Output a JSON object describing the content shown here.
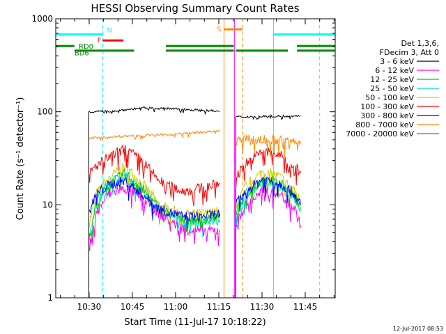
{
  "chart_data": {
    "type": "line",
    "title": "HESSI Observing Summary Count Rates",
    "xlabel": "Start Time (11-Jul-17 10:18:22)",
    "ylabel": "Count Rate (s⁻¹ detector⁻¹)",
    "x_unit": "minutes after 10:18:22 UT",
    "xlim": [
      0,
      97
    ],
    "ylim": [
      1,
      1000
    ],
    "y_scale": "log",
    "grid": false,
    "legend_position": "right",
    "x_ticks": [
      {
        "x": 11.6,
        "label": "10:30"
      },
      {
        "x": 26.6,
        "label": "10:45"
      },
      {
        "x": 41.6,
        "label": "11:00"
      },
      {
        "x": 56.6,
        "label": "11:15"
      },
      {
        "x": 71.6,
        "label": "11:30"
      },
      {
        "x": 86.6,
        "label": "11:45"
      }
    ],
    "y_ticks": [
      {
        "y": 1,
        "label": "1"
      },
      {
        "y": 10,
        "label": "10"
      },
      {
        "y": 100,
        "label": "100"
      },
      {
        "y": 1000,
        "label": "1000"
      }
    ],
    "legend_header": [
      "Det 1,3,6,",
      "FDecim 3, Att 0"
    ],
    "series": [
      {
        "name": "3 - 6 keV",
        "color": "#000000",
        "segments": [
          {
            "x": [
              11.5,
              20,
              30,
              40,
              50,
              57
            ],
            "y": [
              100,
              102,
              110,
              108,
              104,
              101
            ]
          },
          {
            "x": [
              62.5,
              70,
              80,
              85
            ],
            "y": [
              88,
              89,
              90,
              91
            ]
          }
        ]
      },
      {
        "name": "6 - 12 keV",
        "color": "#ff00ff",
        "segments": [
          {
            "x": [
              11.5,
              14,
              18,
              24,
              30,
              36,
              44,
              50,
              57
            ],
            "y": [
              3.2,
              8,
              13,
              15,
              12,
              8,
              5.5,
              5.2,
              5.4
            ]
          },
          {
            "x": [
              62.5,
              66,
              72,
              78,
              83,
              85
            ],
            "y": [
              6,
              10,
              14,
              13,
              9,
              6
            ]
          }
        ]
      },
      {
        "name": "12 - 25 keV",
        "color": "#00cc00",
        "segments": [
          {
            "x": [
              11.5,
              14,
              18,
              24,
              30,
              36,
              44,
              50,
              57
            ],
            "y": [
              4,
              10,
              16,
              22,
              15,
              9,
              7,
              7,
              7.5
            ]
          },
          {
            "x": [
              62.5,
              66,
              72,
              78,
              83,
              85
            ],
            "y": [
              8,
              13,
              19,
              17,
              12,
              9
            ]
          }
        ]
      },
      {
        "name": "25 - 50 keV",
        "color": "#00dddd",
        "segments": [
          {
            "x": [
              11.5,
              14,
              18,
              24,
              30,
              36,
              44,
              50,
              57
            ],
            "y": [
              4.5,
              11,
              17,
              20,
              14,
              8.5,
              6.5,
              6.5,
              7
            ]
          },
          {
            "x": [
              62.5,
              66,
              72,
              78,
              83,
              85
            ],
            "y": [
              8.5,
              13,
              18,
              16,
              12,
              9
            ]
          }
        ]
      },
      {
        "name": "50 - 100 keV",
        "color": "#cccc00",
        "segments": [
          {
            "x": [
              11.5,
              14,
              18,
              24,
              30,
              36,
              44,
              50,
              57
            ],
            "y": [
              6,
              13,
              19,
              26,
              17,
              10,
              8,
              8,
              8.5
            ]
          },
          {
            "x": [
              62.5,
              66,
              72,
              78,
              83,
              85
            ],
            "y": [
              10,
              16,
              23,
              20,
              14,
              11
            ]
          }
        ]
      },
      {
        "name": "100 - 300 keV",
        "color": "#ff0000",
        "segments": [
          {
            "x": [
              11.5,
              14,
              18,
              24,
              30,
              36,
              44,
              50,
              57
            ],
            "y": [
              22,
              26,
              32,
              40,
              30,
              18,
              14,
              15,
              17
            ]
          },
          {
            "x": [
              62.5,
              66,
              72,
              78,
              83,
              85
            ],
            "y": [
              20,
              28,
              38,
              34,
              26,
              22
            ]
          }
        ]
      },
      {
        "name": "300 - 800 keV",
        "color": "#0000ff",
        "segments": [
          {
            "x": [
              11.5,
              14,
              18,
              24,
              30,
              36,
              44,
              50,
              57
            ],
            "y": [
              8,
              13,
              16,
              18,
              13,
              9,
              7.5,
              7.5,
              8
            ]
          },
          {
            "x": [
              62.5,
              66,
              72,
              78,
              83,
              85
            ],
            "y": [
              10,
              14,
              19,
              17,
              13,
              10
            ]
          }
        ]
      },
      {
        "name": "800 - 7000 keV",
        "color": "#ff8800",
        "segments": [
          {
            "x": [
              11.5,
              20,
              30,
              40,
              50,
              57
            ],
            "y": [
              52,
              54,
              56,
              57,
              60,
              62
            ]
          },
          {
            "x": [
              62.5,
              70,
              80,
              85
            ],
            "y": [
              50,
              50,
              49,
              48
            ]
          }
        ]
      },
      {
        "name": "7000 - 20000 keV",
        "color": "#996600",
        "segments": []
      }
    ],
    "annotations": {
      "bars": [
        {
          "label": "N",
          "color": "#00ffff",
          "y": 680,
          "segments": [
            [
              0,
              16.3
            ],
            [
              75.6,
              97
            ]
          ]
        },
        {
          "label": "F",
          "color": "#ff0000",
          "y": 585,
          "segments": [
            [
              16.3,
              23.5
            ]
          ]
        },
        {
          "label": "S",
          "color": "#ff8800",
          "y": 770,
          "segments": [
            [
              58.4,
              64.8
            ]
          ]
        },
        {
          "label": "RD0",
          "color": "#008800",
          "y": 510,
          "segments": [
            [
              0,
              6.5
            ]
          ]
        },
        {
          "label": "BD6",
          "color": "#008800",
          "y": 455,
          "segments": [
            [
              6.5,
              27.2
            ],
            [
              38.2,
              61.8
            ],
            [
              62.5,
              80.6
            ],
            [
              83.7,
              97
            ]
          ]
        },
        {
          "label": "",
          "color": "#008800",
          "y": 510,
          "segments": [
            [
              38.2,
              61.8
            ],
            [
              83.7,
              97
            ]
          ]
        }
      ],
      "vlines": [
        {
          "x": 0,
          "color": "#00ffff",
          "style": "solid"
        },
        {
          "x": 16.3,
          "color": "#00ffff",
          "style": "dashed"
        },
        {
          "x": 75.6,
          "color": "#00ffff",
          "style": "solid"
        },
        {
          "x": 91.6,
          "color": "#00ffff",
          "style": "dashed"
        },
        {
          "x": 58.4,
          "color": "#ff8800",
          "style": "solid"
        },
        {
          "x": 64.8,
          "color": "#ff8800",
          "style": "dashed"
        },
        {
          "x": 62.0,
          "color": "#ff00ff",
          "style": "solid"
        }
      ]
    }
  },
  "timestamp": "12-Jul-2017 08:53"
}
